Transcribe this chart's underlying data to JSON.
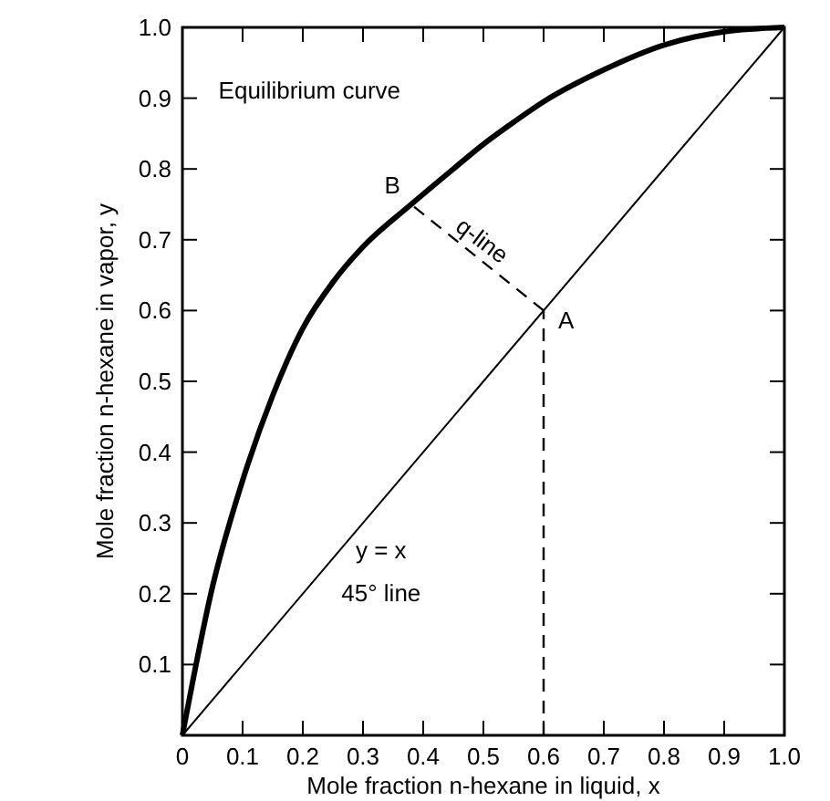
{
  "chart_data": {
    "type": "line",
    "xlabel": "Mole fraction n-hexane in liquid, x",
    "ylabel": "Mole fraction n-hexane in vapor, y",
    "xlim": [
      0,
      1
    ],
    "ylim": [
      0,
      1
    ],
    "xticks": [
      0,
      0.1,
      0.2,
      0.3,
      0.4,
      0.5,
      0.6,
      0.7,
      0.8,
      0.9,
      {
        "value": 1,
        "label": "1.0"
      }
    ],
    "yticks": [
      {
        "value": 0,
        "label": null
      },
      0.1,
      0.2,
      0.3,
      0.4,
      0.5,
      0.6,
      0.7,
      0.8,
      0.9,
      {
        "value": 1,
        "label": "1.0"
      }
    ],
    "grid": false,
    "marker": "none",
    "series": [
      {
        "color": "#000000",
        "x": [
          0,
          0.05,
          0.1,
          0.15,
          0.2,
          0.25,
          0.3,
          0.38,
          0.45,
          0.5,
          0.55,
          0.6,
          0.7,
          0.8,
          0.9,
          1
        ],
        "values": [
          0,
          0.21,
          0.36,
          0.48,
          0.575,
          0.64,
          0.69,
          0.75,
          0.8,
          0.835,
          0.866,
          0.895,
          0.94,
          0.975,
          0.994,
          1
        ],
        "line_style": "solid"
      },
      {
        "color": "#000000",
        "x": [
          0,
          1
        ],
        "values": [
          0,
          1
        ],
        "line_style": "solid"
      },
      {
        "color": "#000000",
        "x": [
          0.6,
          0.38
        ],
        "values": [
          0.6,
          0.75
        ],
        "line_style": "dashed"
      },
      {
        "color": "#000000",
        "x": [
          0.6,
          0.6
        ],
        "values": [
          0,
          0.6
        ],
        "line_style": "dashed"
      }
    ],
    "annotations": [
      "Equilibrium curve",
      {
        "text": "B",
        "x": 0.38,
        "y": 0.75
      },
      {
        "text": "A",
        "x": 0.6,
        "y": 0.6
      },
      "q-line",
      "y = x",
      "45° line"
    ]
  }
}
